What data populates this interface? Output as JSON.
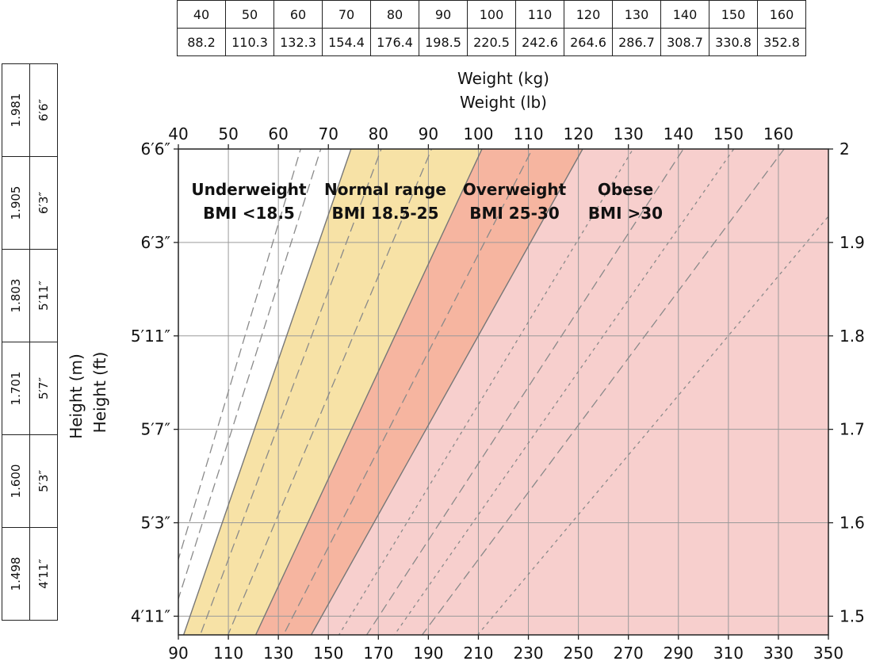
{
  "top_table": {
    "kg": [
      "40",
      "50",
      "60",
      "70",
      "80",
      "90",
      "100",
      "110",
      "120",
      "130",
      "140",
      "150",
      "160"
    ],
    "lb": [
      "88.2",
      "110.3",
      "132.3",
      "154.4",
      "176.4",
      "198.5",
      "220.5",
      "242.6",
      "264.6",
      "286.7",
      "308.7",
      "330.8",
      "352.8"
    ]
  },
  "side_table": {
    "meters": [
      "1.981",
      "1.905",
      "1.803",
      "1.701",
      "1.600",
      "1.498"
    ],
    "feet": [
      "6′6″",
      "6′3″",
      "5′11″",
      "5′7″",
      "5′3″",
      "4′11″"
    ]
  },
  "chart_data": {
    "type": "area",
    "x_top_label": "Weight (kg)",
    "x_top_label2": "Weight (lb)",
    "y_left_label": "Height (m)",
    "y_left_label2": "Height (ft)",
    "x_kg_range": [
      40,
      170
    ],
    "x_kg_ticks": [
      "40",
      "50",
      "60",
      "70",
      "80",
      "90",
      "100",
      "110",
      "120",
      "130",
      "140",
      "150",
      "160"
    ],
    "x_lb_range": [
      90,
      350
    ],
    "x_lb_ticks": [
      "90",
      "110",
      "130",
      "150",
      "170",
      "190",
      "210",
      "230",
      "250",
      "270",
      "290",
      "310",
      "330",
      "350"
    ],
    "y_m_range": [
      1.48,
      2.0
    ],
    "y_right_ticks": [
      "1.5",
      "1.6",
      "1.7",
      "1.8",
      "1.9",
      "2"
    ],
    "y_left_ticks": [
      {
        "label": "6′6″",
        "m": 2.0
      },
      {
        "label": "6′3″",
        "m": 1.9
      },
      {
        "label": "5′11″",
        "m": 1.8
      },
      {
        "label": "5′7″",
        "m": 1.7
      },
      {
        "label": "5′3″",
        "m": 1.6
      },
      {
        "label": "4′11″",
        "m": 1.5
      }
    ],
    "bands": [
      {
        "name": "Underweight",
        "label": "BMI <18.5",
        "min": 0,
        "max": 18.5,
        "color": "#ffffff"
      },
      {
        "name": "Normal range",
        "label": "BMI 18.5-25",
        "min": 18.5,
        "max": 25,
        "color": "#f7e2a6"
      },
      {
        "name": "Overweight",
        "label": "BMI 25-30",
        "min": 25,
        "max": 30,
        "color": "#f6b5a0"
      },
      {
        "name": "Obese",
        "label": "BMI >30",
        "min": 30,
        "max": 100,
        "color": "#f7cfcd"
      }
    ],
    "dashed_bmi_lines": [
      16,
      17,
      20,
      22.5,
      27.5,
      35,
      40
    ],
    "dotted_bmi_lines": [
      32.5,
      37.5,
      45
    ]
  }
}
